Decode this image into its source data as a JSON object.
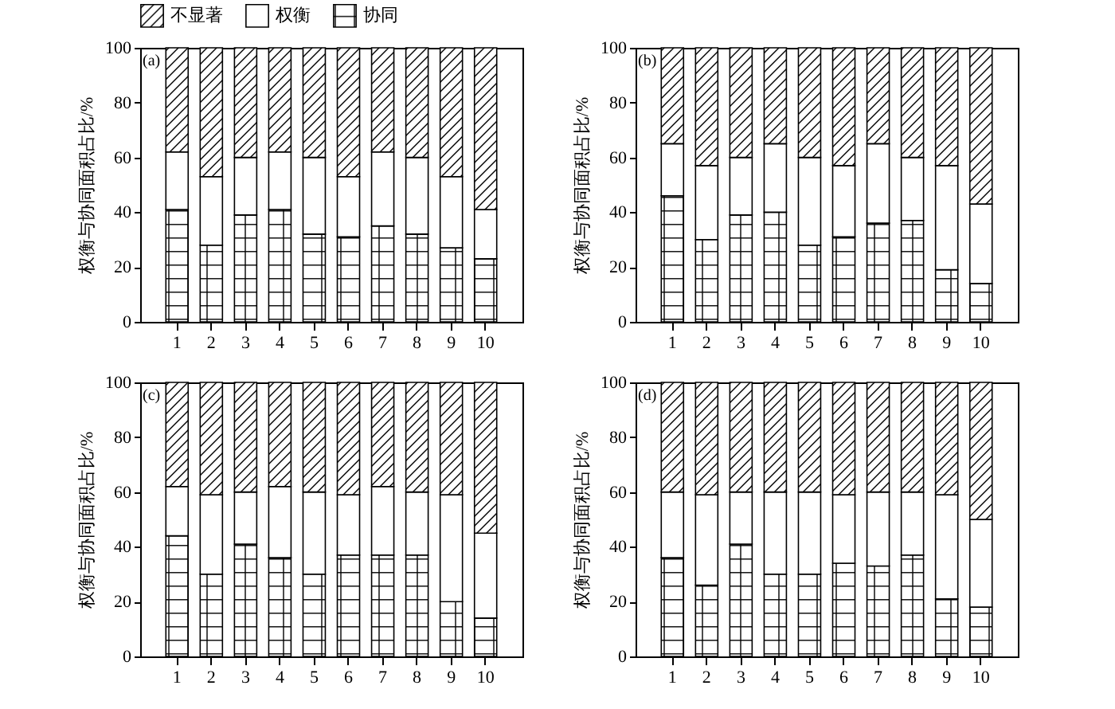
{
  "chart_data": [
    {
      "type": "bar",
      "stacked": true,
      "title": "(a)",
      "ylabel": "权衡与协同面积占比/%",
      "categories": [
        "1",
        "2",
        "3",
        "4",
        "5",
        "6",
        "7",
        "8",
        "9",
        "10"
      ],
      "ylim": [
        0,
        100
      ],
      "yticks": [
        0,
        20,
        40,
        60,
        80,
        100
      ],
      "grid": false,
      "legend": "top",
      "series": [
        {
          "name": "协同",
          "color": "#000000",
          "values": [
            41,
            28,
            39,
            41,
            32,
            31,
            35,
            32,
            27,
            23
          ]
        },
        {
          "name": "权衡",
          "color": "#ffffff",
          "values": [
            21,
            25,
            21,
            21,
            28,
            22,
            27,
            28,
            26,
            18
          ]
        },
        {
          "name": "不显著",
          "color": "#000000",
          "values": [
            38,
            47,
            40,
            38,
            40,
            47,
            38,
            40,
            47,
            59
          ]
        }
      ]
    },
    {
      "type": "bar",
      "stacked": true,
      "title": "(b)",
      "ylabel": "权衡与协同面积占比/%",
      "categories": [
        "1",
        "2",
        "3",
        "4",
        "5",
        "6",
        "7",
        "8",
        "9",
        "10"
      ],
      "ylim": [
        0,
        100
      ],
      "yticks": [
        0,
        20,
        40,
        60,
        80,
        100
      ],
      "grid": false,
      "legend": "top",
      "series": [
        {
          "name": "协同",
          "color": "#000000",
          "values": [
            46,
            30,
            39,
            40,
            28,
            31,
            36,
            37,
            19,
            14
          ]
        },
        {
          "name": "权衡",
          "color": "#ffffff",
          "values": [
            19,
            27,
            21,
            25,
            32,
            26,
            29,
            23,
            38,
            29
          ]
        },
        {
          "name": "不显著",
          "color": "#000000",
          "values": [
            35,
            43,
            40,
            35,
            40,
            43,
            35,
            40,
            43,
            57
          ]
        }
      ]
    },
    {
      "type": "bar",
      "stacked": true,
      "title": "(c)",
      "ylabel": "权衡与协同面积占比/%",
      "categories": [
        "1",
        "2",
        "3",
        "4",
        "5",
        "6",
        "7",
        "8",
        "9",
        "10"
      ],
      "ylim": [
        0,
        100
      ],
      "yticks": [
        0,
        20,
        40,
        60,
        80,
        100
      ],
      "grid": false,
      "legend": "top",
      "series": [
        {
          "name": "协同",
          "color": "#000000",
          "values": [
            44,
            30,
            41,
            36,
            30,
            37,
            37,
            37,
            20,
            14
          ]
        },
        {
          "name": "权衡",
          "color": "#ffffff",
          "values": [
            18,
            29,
            19,
            26,
            30,
            22,
            25,
            23,
            39,
            31
          ]
        },
        {
          "name": "不显著",
          "color": "#000000",
          "values": [
            38,
            41,
            40,
            38,
            40,
            41,
            38,
            40,
            41,
            55
          ]
        }
      ]
    },
    {
      "type": "bar",
      "stacked": true,
      "title": "(d)",
      "ylabel": "权衡与协同面积占比/%",
      "categories": [
        "1",
        "2",
        "3",
        "4",
        "5",
        "6",
        "7",
        "8",
        "9",
        "10"
      ],
      "ylim": [
        0,
        100
      ],
      "yticks": [
        0,
        20,
        40,
        60,
        80,
        100
      ],
      "grid": false,
      "legend": "top",
      "series": [
        {
          "name": "协同",
          "color": "#000000",
          "values": [
            36,
            26,
            41,
            30,
            30,
            34,
            33,
            37,
            21,
            18
          ]
        },
        {
          "name": "权衡",
          "color": "#ffffff",
          "values": [
            24,
            33,
            19,
            30,
            30,
            25,
            27,
            23,
            38,
            32
          ]
        },
        {
          "name": "不显著",
          "color": "#000000",
          "values": [
            40,
            41,
            40,
            40,
            40,
            41,
            40,
            40,
            41,
            50
          ]
        }
      ]
    }
  ]
}
